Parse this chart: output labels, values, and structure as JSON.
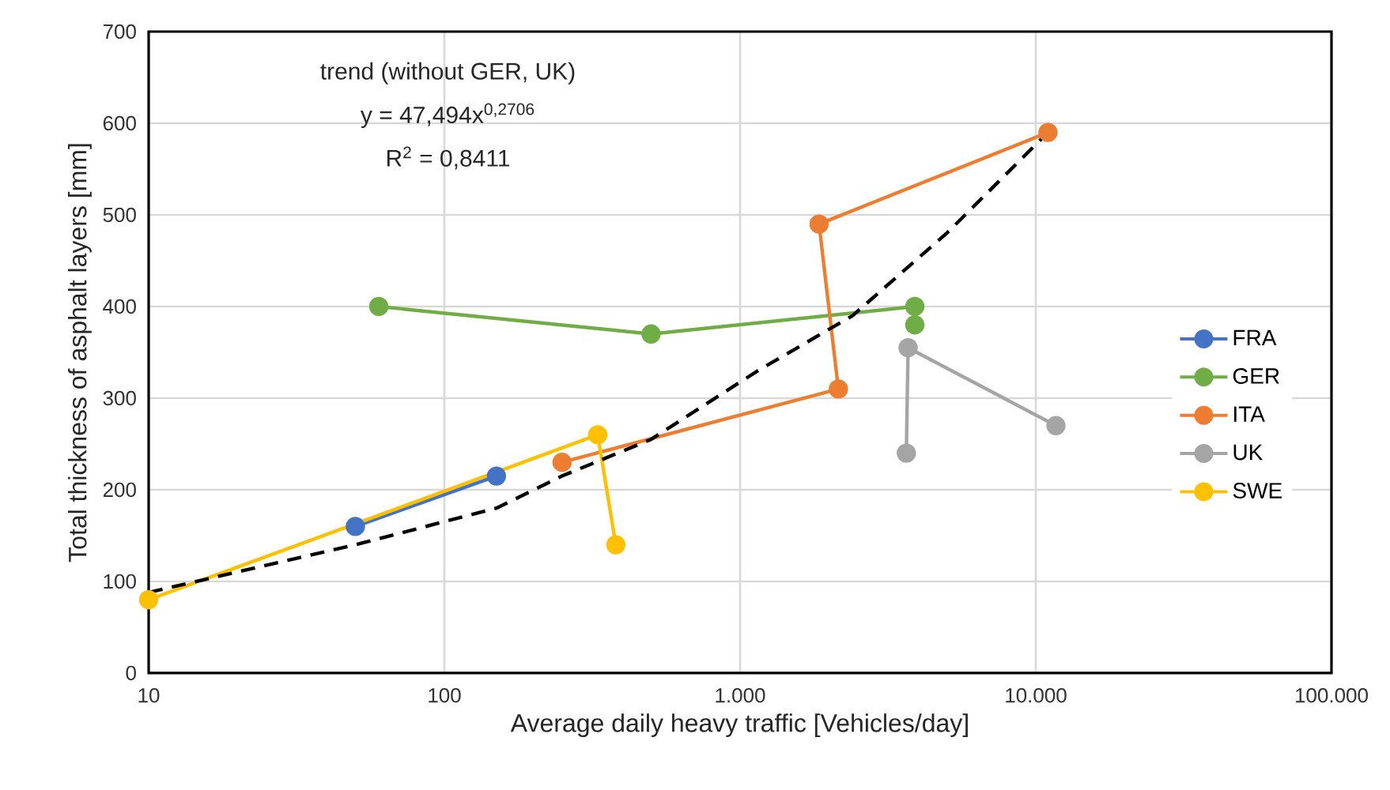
{
  "chart_data": {
    "type": "line",
    "xlabel": "Average daily heavy traffic [Vehicles/day]",
    "ylabel": "Total thickness of asphalt layers [mm]",
    "log": "x",
    "xlim": [
      10,
      100000
    ],
    "xticks": [
      10,
      100,
      {
        "value": 1000,
        "label": "1.000"
      },
      {
        "value": 10000,
        "label": "10.000"
      },
      {
        "value": 100000,
        "label": "100.000"
      }
    ],
    "ylim": [
      0,
      700
    ],
    "yticks": [
      0,
      100,
      200,
      300,
      400,
      500,
      600,
      700
    ],
    "grid": true,
    "legend": "right",
    "marker": "circle",
    "line_style": "solid",
    "annotations": [
      "trend (without GER, UK)",
      "y = 47,494x$^{0,2706}$",
      "R$^{2}$ = 0,8411"
    ],
    "series": [
      {
        "name": "FRA",
        "color": "#4472c4",
        "x": [
          50,
          150
        ],
        "values": [
          160,
          215
        ]
      },
      {
        "name": "GER",
        "color": "#70ad47",
        "x": [
          60,
          500,
          3900,
          3900
        ],
        "values": [
          400,
          370,
          400,
          380
        ]
      },
      {
        "name": "ITA",
        "color": "#ed7d31",
        "x": [
          250,
          2150,
          1850,
          11000
        ],
        "values": [
          230,
          310,
          490,
          590
        ]
      },
      {
        "name": "UK",
        "color": "#a5a5a5",
        "x": [
          3650,
          3700,
          11700
        ],
        "values": [
          240,
          355,
          270
        ]
      },
      {
        "name": "SWE",
        "color": "#ffc000",
        "x": [
          10,
          330,
          380
        ],
        "values": [
          80,
          260,
          140
        ]
      },
      {
        "color": "#000000",
        "line_style": "dashed",
        "marker": "none",
        "x": [
          10,
          50,
          150,
          250,
          500,
          1150,
          2400,
          5000,
          11000
        ],
        "values": [
          88,
          140,
          180,
          215,
          255,
          330,
          390,
          480,
          590
        ]
      }
    ]
  }
}
